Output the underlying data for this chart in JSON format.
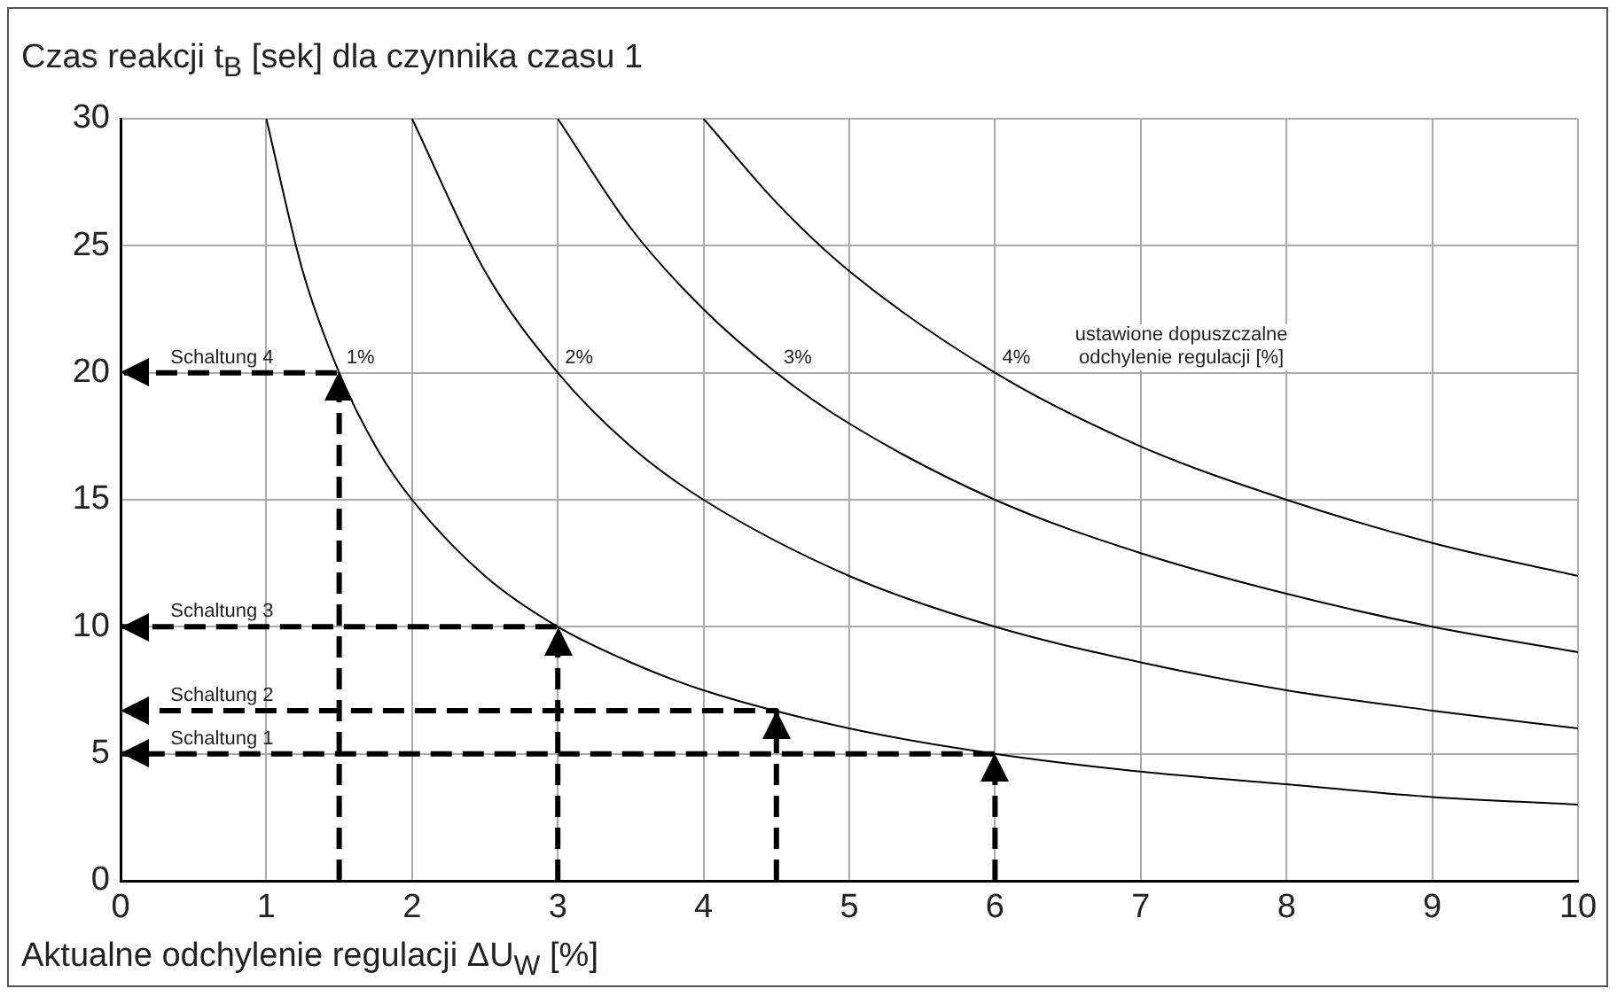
{
  "chart_data": {
    "type": "line",
    "ylabel": "Czas reakcji t$_{B}$ [sek] dla czynnika czasu 1",
    "xlabel": "Aktualne odchylenie regulacji ΔU$_{W}$ [%]",
    "xlim": [
      0,
      10
    ],
    "xticks": [
      0,
      1,
      2,
      3,
      4,
      5,
      6,
      7,
      8,
      9,
      10
    ],
    "ylim": [
      0,
      30
    ],
    "yticks": [
      0,
      5,
      10,
      15,
      20,
      25,
      30
    ],
    "grid": true,
    "legend": false,
    "marker": "none",
    "series": [
      {
        "color": "#000000",
        "line_style": "solid",
        "x": [
          1,
          1.25,
          1.5,
          1.75,
          2,
          2.5,
          3,
          3.5,
          4,
          5,
          6,
          7,
          8,
          9,
          10
        ],
        "values": [
          30,
          24,
          20,
          17.1,
          15,
          12,
          10,
          8.6,
          7.5,
          6,
          5,
          4.3,
          3.8,
          3.3,
          3
        ]
      },
      {
        "color": "#000000",
        "line_style": "solid",
        "x": [
          2,
          2.5,
          3,
          3.5,
          4,
          5,
          6,
          7,
          8,
          9,
          10
        ],
        "values": [
          30,
          24,
          20,
          17.1,
          15,
          12,
          10,
          8.6,
          7.5,
          6.7,
          6
        ]
      },
      {
        "color": "#000000",
        "line_style": "solid",
        "x": [
          3,
          3.5,
          4,
          4.5,
          5,
          6,
          7,
          8,
          9,
          10
        ],
        "values": [
          30,
          25.7,
          22.5,
          20,
          18,
          15,
          12.9,
          11.3,
          10,
          9
        ]
      },
      {
        "color": "#000000",
        "line_style": "solid",
        "x": [
          4,
          4.5,
          5,
          6,
          7,
          8,
          9,
          10
        ],
        "values": [
          30,
          26.7,
          24,
          20,
          17.1,
          15,
          13.3,
          12
        ]
      },
      {
        "color": "#000000",
        "line_style": "dashed",
        "x": [
          1.5,
          1.5,
          0
        ],
        "values": [
          0,
          20,
          20
        ]
      },
      {
        "color": "#000000",
        "line_style": "dashed",
        "x": [
          3,
          3,
          0
        ],
        "values": [
          0,
          10,
          10
        ]
      },
      {
        "color": "#000000",
        "line_style": "dashed",
        "x": [
          4.5,
          4.5,
          0
        ],
        "values": [
          0,
          6.7,
          6.7
        ]
      },
      {
        "color": "#000000",
        "line_style": "dashed",
        "x": [
          6,
          6,
          0
        ],
        "values": [
          0,
          5,
          5
        ]
      }
    ],
    "annotations": [
      {
        "text": "Schaltung 4",
        "x": 0.55,
        "y": 20
      },
      {
        "text": "Schaltung 3",
        "x": 0.55,
        "y": 10
      },
      {
        "text": "Schaltung 2",
        "x": 0.55,
        "y": 6.7
      },
      {
        "text": "Schaltung 1",
        "x": 0.55,
        "y": 5
      },
      {
        "text": "1%",
        "x": 1.5,
        "y": 20
      },
      {
        "text": "2%",
        "x": 3,
        "y": 20
      },
      {
        "text": "3%",
        "x": 4.5,
        "y": 20
      },
      {
        "text": "4%",
        "x": 6,
        "y": 20
      },
      "ustawione dopuszczalne\nodchylenie regulacji [%]"
    ]
  }
}
